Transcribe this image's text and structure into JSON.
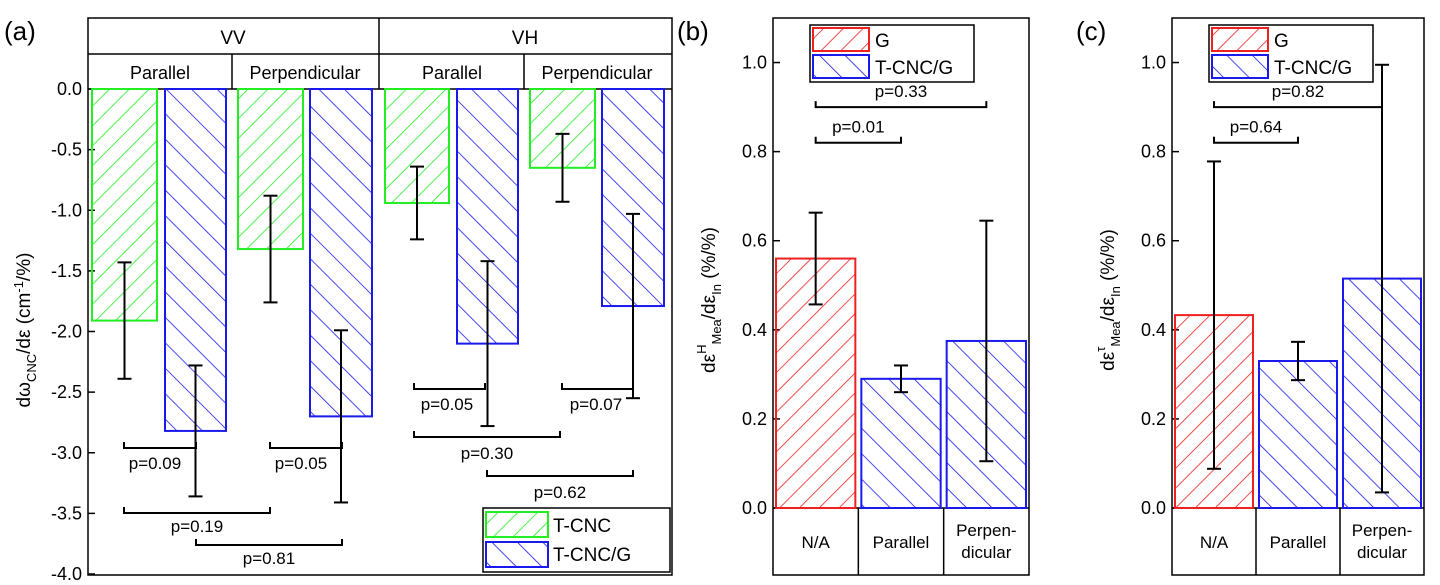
{
  "colors": {
    "green": "#22ee22",
    "blue": "#1a1aee",
    "red": "#ee2020"
  },
  "chart_data": [
    {
      "panel": "(a)",
      "type": "bar",
      "ylabel": {
        "main": "dω",
        "sub": "CNC",
        "tail": "/dε (cm",
        "sup": "-1",
        "end": "/%)"
      },
      "ylim": [
        -4.0,
        0.0
      ],
      "yticks": [
        "0.0",
        "-0.5",
        "-1.0",
        "-1.5",
        "-2.0",
        "-2.5",
        "-3.0",
        "-3.5",
        "-4.0"
      ],
      "header_top": [
        "VV",
        "VH"
      ],
      "header_sub": [
        "Parallel",
        "Perpendicular",
        "Parallel",
        "Perpendicular"
      ],
      "series": [
        {
          "name": "T-CNC",
          "color": "green",
          "values": [
            -1.91,
            -1.32,
            -0.94,
            -0.65
          ],
          "errors": [
            0.48,
            0.44,
            0.3,
            0.28
          ]
        },
        {
          "name": "T-CNC/G",
          "color": "blue",
          "values": [
            -2.82,
            -2.7,
            -2.1,
            -1.79
          ],
          "errors": [
            0.54,
            0.71,
            0.68,
            0.76
          ]
        }
      ],
      "pvalues": [
        {
          "text": "p=0.09",
          "y": -3.0
        },
        {
          "text": "p=0.05",
          "y": -3.0
        },
        {
          "text": "p=0.05",
          "y": -2.55
        },
        {
          "text": "p=0.07",
          "y": -2.55
        },
        {
          "text": "p=0.30",
          "y": -2.78
        },
        {
          "text": "p=0.62",
          "y": -3.22
        },
        {
          "text": "p=0.19",
          "y": -3.5
        },
        {
          "text": "p=0.81",
          "y": -3.68
        }
      ]
    },
    {
      "panel": "(b)",
      "type": "bar",
      "ylabel": {
        "main": "dε",
        "sup": "H",
        "sub": "Mea",
        "tail": "/dε",
        "sub2": "In",
        "end": " (%/%)"
      },
      "ylim": [
        0.0,
        1.1
      ],
      "yticks": [
        "0.0",
        "0.2",
        "0.4",
        "0.6",
        "0.8",
        "1.0"
      ],
      "categories": [
        "N/A",
        "Parallel",
        "Perpen-\ndicular"
      ],
      "bars": [
        {
          "series": "G",
          "value": 0.56,
          "error": 0.103
        },
        {
          "series": "T-CNC/G",
          "value": 0.29,
          "error": 0.03
        },
        {
          "series": "T-CNC/G",
          "value": 0.375,
          "error": 0.27
        }
      ],
      "legend": [
        {
          "name": "G",
          "color": "red"
        },
        {
          "name": "T-CNC/G",
          "color": "blue"
        }
      ],
      "pvalues": [
        {
          "text": "p=0.01",
          "y": 0.82
        },
        {
          "text": "p=0.33",
          "y": 0.9
        }
      ]
    },
    {
      "panel": "(c)",
      "type": "bar",
      "ylabel": {
        "main": "dε",
        "sup": "τ",
        "sub": "Mea",
        "tail": "/dε",
        "sub2": "In",
        "end": " (%/%)"
      },
      "ylim": [
        0.0,
        1.1
      ],
      "yticks": [
        "0.0",
        "0.2",
        "0.4",
        "0.6",
        "0.8",
        "1.0"
      ],
      "categories": [
        "N/A",
        "Parallel",
        "Perpen-\ndicular"
      ],
      "bars": [
        {
          "series": "G",
          "value": 0.433,
          "error": 0.345
        },
        {
          "series": "T-CNC/G",
          "value": 0.33,
          "error": 0.043
        },
        {
          "series": "T-CNC/G",
          "value": 0.515,
          "error": 0.48
        }
      ],
      "legend": [
        {
          "name": "G",
          "color": "red"
        },
        {
          "name": "T-CNC/G",
          "color": "blue"
        }
      ],
      "pvalues": [
        {
          "text": "p=0.64",
          "y": 0.82
        },
        {
          "text": "p=0.82",
          "y": 0.9
        }
      ]
    }
  ]
}
